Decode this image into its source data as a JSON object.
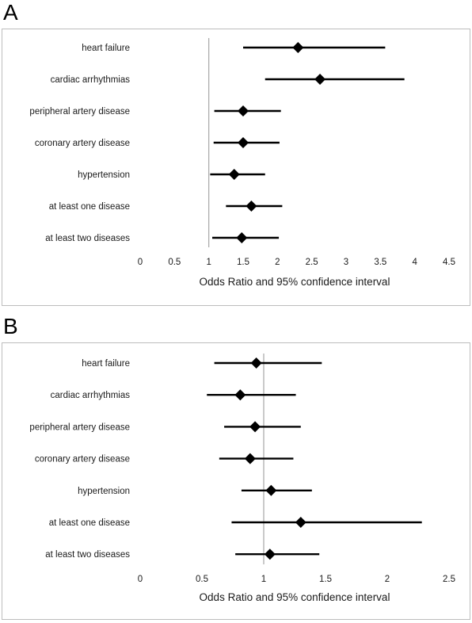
{
  "chart_data": [
    {
      "panel_label": "A",
      "type": "forest",
      "categories": [
        "heart failure",
        "cardiac arrhythmias",
        "peripheral artery disease",
        "coronary artery disease",
        "hypertension",
        "at least one disease",
        "at least two diseases"
      ],
      "estimates": [
        2.3,
        2.62,
        1.5,
        1.5,
        1.37,
        1.62,
        1.48
      ],
      "ci_lower": [
        1.5,
        1.82,
        1.08,
        1.07,
        1.02,
        1.25,
        1.05
      ],
      "ci_upper": [
        3.57,
        3.85,
        2.05,
        2.03,
        1.82,
        2.07,
        2.02
      ],
      "reference_line": 1,
      "xlim": [
        0,
        4.5
      ],
      "xticks": [
        "0",
        "0.5",
        "1",
        "1.5",
        "2",
        "2.5",
        "3",
        "3.5",
        "4",
        "4.5"
      ],
      "xlabel": "Odds Ratio and 95% confidence interval"
    },
    {
      "panel_label": "B",
      "type": "forest",
      "categories": [
        "heart failure",
        "cardiac arrhythmias",
        "peripheral artery disease",
        "coronary artery disease",
        "hypertension",
        "at least one disease",
        "at least two diseases"
      ],
      "estimates": [
        0.94,
        0.81,
        0.93,
        0.89,
        1.06,
        1.3,
        1.05
      ],
      "ci_lower": [
        0.6,
        0.54,
        0.68,
        0.64,
        0.82,
        0.74,
        0.77
      ],
      "ci_upper": [
        1.47,
        1.26,
        1.3,
        1.24,
        1.39,
        2.28,
        1.45
      ],
      "reference_line": 1,
      "xlim": [
        0,
        2.5
      ],
      "xticks": [
        "0",
        "0.5",
        "1",
        "1.5",
        "2",
        "2.5"
      ],
      "xlabel": "Odds Ratio and 95% confidence interval"
    }
  ]
}
